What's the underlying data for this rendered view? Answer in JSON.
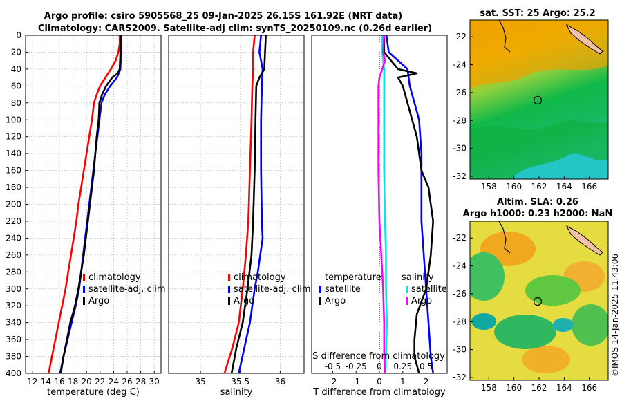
{
  "title": {
    "line1": "Argo profile: csiro 5905568_25 09-Jan-2025 26.15S 161.92E (NRT data)",
    "line2": "Climatology: CARS2009. Satellite-adj clim: synTS_20250109.nc (0.26d earlier)"
  },
  "credit": "©IMOS 14-Jan-2025 11:43:06",
  "colors": {
    "climatology": "#ff0000",
    "satellite": "#0000ff",
    "argo": "#000000",
    "sal_satellite": "#00e8e8",
    "sal_argo": "#ff00ff"
  },
  "chart_data": [
    {
      "type": "line",
      "name": "temperature-profile",
      "xlabel": "temperature (deg C)",
      "ylabel": "",
      "xlim": [
        11,
        31
      ],
      "ylim": [
        400,
        0
      ],
      "xticks": [
        12,
        14,
        16,
        18,
        20,
        22,
        24,
        26,
        28,
        30
      ],
      "yticks": [
        0,
        20,
        40,
        60,
        80,
        100,
        120,
        140,
        160,
        180,
        200,
        220,
        240,
        260,
        280,
        300,
        320,
        340,
        360,
        380,
        400
      ],
      "grid": true,
      "legend": {
        "position": "lower-right",
        "entries": [
          "climatology",
          "satellite-adj. clim",
          "Argo"
        ]
      },
      "series": [
        {
          "name": "climatology",
          "color": "#ff0000",
          "points": [
            [
              24.9,
              0
            ],
            [
              24.9,
              10
            ],
            [
              24.7,
              20
            ],
            [
              24.3,
              30
            ],
            [
              23.6,
              40
            ],
            [
              22.8,
              50
            ],
            [
              22.0,
              60
            ],
            [
              21.5,
              70
            ],
            [
              21.1,
              80
            ],
            [
              20.8,
              100
            ],
            [
              20.4,
              120
            ],
            [
              20.0,
              140
            ],
            [
              19.6,
              160
            ],
            [
              19.2,
              180
            ],
            [
              18.8,
              200
            ],
            [
              18.5,
              220
            ],
            [
              18.1,
              240
            ],
            [
              17.7,
              260
            ],
            [
              17.3,
              280
            ],
            [
              16.9,
              300
            ],
            [
              16.4,
              320
            ],
            [
              15.9,
              340
            ],
            [
              15.4,
              360
            ],
            [
              14.9,
              380
            ],
            [
              14.4,
              400
            ]
          ]
        },
        {
          "name": "satellite-adj. clim",
          "color": "#0000ff",
          "points": [
            [
              25.1,
              0
            ],
            [
              25.1,
              20
            ],
            [
              25.0,
              40
            ],
            [
              24.5,
              50
            ],
            [
              23.5,
              60
            ],
            [
              22.7,
              70
            ],
            [
              22.2,
              80
            ],
            [
              21.9,
              100
            ],
            [
              21.6,
              120
            ],
            [
              21.3,
              140
            ],
            [
              21.0,
              160
            ],
            [
              20.7,
              180
            ],
            [
              20.4,
              200
            ],
            [
              20.1,
              220
            ],
            [
              19.8,
              240
            ],
            [
              19.5,
              260
            ],
            [
              19.2,
              280
            ],
            [
              18.9,
              300
            ],
            [
              18.4,
              320
            ],
            [
              17.8,
              340
            ],
            [
              17.2,
              360
            ],
            [
              16.6,
              380
            ],
            [
              16.1,
              400
            ]
          ]
        },
        {
          "name": "Argo",
          "color": "#000000",
          "points": [
            [
              25.0,
              0
            ],
            [
              25.0,
              20
            ],
            [
              24.9,
              40
            ],
            [
              24.6,
              45
            ],
            [
              23.8,
              50
            ],
            [
              22.9,
              60
            ],
            [
              22.3,
              70
            ],
            [
              21.9,
              80
            ],
            [
              21.8,
              100
            ],
            [
              21.5,
              120
            ],
            [
              21.3,
              140
            ],
            [
              21.1,
              160
            ],
            [
              20.8,
              180
            ],
            [
              20.5,
              200
            ],
            [
              20.2,
              220
            ],
            [
              19.9,
              240
            ],
            [
              19.6,
              260
            ],
            [
              19.2,
              280
            ],
            [
              18.8,
              300
            ],
            [
              18.3,
              320
            ],
            [
              17.6,
              340
            ],
            [
              17.1,
              360
            ],
            [
              16.6,
              380
            ],
            [
              16.2,
              400
            ]
          ]
        }
      ]
    },
    {
      "type": "line",
      "name": "salinity-profile",
      "xlabel": "salinity",
      "xlim": [
        34.6,
        36.3
      ],
      "ylim": [
        400,
        0
      ],
      "xticks": [
        35,
        35.5,
        36
      ],
      "xtick_labels": [
        "35",
        "35.5",
        "36"
      ],
      "grid": true,
      "legend": {
        "position": "lower-right",
        "entries": [
          "climatology",
          "satellite-adj. clim",
          "Argo"
        ]
      },
      "series": [
        {
          "name": "climatology",
          "color": "#ff0000",
          "points": [
            [
              35.68,
              0
            ],
            [
              35.66,
              20
            ],
            [
              35.66,
              40
            ],
            [
              35.65,
              60
            ],
            [
              35.64,
              100
            ],
            [
              35.62,
              160
            ],
            [
              35.6,
              220
            ],
            [
              35.57,
              260
            ],
            [
              35.53,
              300
            ],
            [
              35.48,
              340
            ],
            [
              35.4,
              370
            ],
            [
              35.3,
              400
            ]
          ]
        },
        {
          "name": "satellite-adj. clim",
          "color": "#0000ff",
          "points": [
            [
              35.76,
              0
            ],
            [
              35.74,
              20
            ],
            [
              35.78,
              40
            ],
            [
              35.77,
              60
            ],
            [
              35.76,
              100
            ],
            [
              35.76,
              160
            ],
            [
              35.77,
              220
            ],
            [
              35.78,
              240
            ],
            [
              35.72,
              280
            ],
            [
              35.68,
              300
            ],
            [
              35.62,
              340
            ],
            [
              35.55,
              370
            ],
            [
              35.48,
              400
            ]
          ]
        },
        {
          "name": "Argo",
          "color": "#000000",
          "points": [
            [
              35.82,
              0
            ],
            [
              35.81,
              20
            ],
            [
              35.8,
              40
            ],
            [
              35.74,
              50
            ],
            [
              35.7,
              60
            ],
            [
              35.69,
              100
            ],
            [
              35.68,
              160
            ],
            [
              35.66,
              220
            ],
            [
              35.64,
              260
            ],
            [
              35.59,
              300
            ],
            [
              35.53,
              340
            ],
            [
              35.45,
              370
            ],
            [
              35.39,
              400
            ]
          ]
        }
      ]
    },
    {
      "type": "line",
      "name": "difference-profile",
      "xlabel": "T difference from climatology",
      "top_xlabel": "S difference from climatology",
      "xlim": [
        -2.9,
        2.9
      ],
      "ylim": [
        400,
        0
      ],
      "xticks": [
        -2,
        -1,
        0,
        1,
        2
      ],
      "xtick_labels": [
        "-2",
        "-1",
        "0",
        "1",
        "2"
      ],
      "top_xticks": [
        -0.5,
        -0.25,
        0,
        0.25,
        0.5
      ],
      "top_xtick_labels": [
        "-0.5",
        "-0.25",
        "0",
        "0.25",
        "0.5"
      ],
      "s_scale": 4,
      "legend": {
        "position": "lower",
        "groups": [
          {
            "title": "temperature",
            "entries": [
              "satellite",
              "Argo"
            ]
          },
          {
            "title": "salinity",
            "entries": [
              "satellite",
              "Argo"
            ]
          }
        ]
      },
      "series": [
        {
          "name": "T satellite",
          "color": "#0000ff",
          "points": [
            [
              0.3,
              0
            ],
            [
              0.4,
              20
            ],
            [
              1.2,
              40
            ],
            [
              1.3,
              60
            ],
            [
              1.5,
              80
            ],
            [
              1.7,
              100
            ],
            [
              1.8,
              140
            ],
            [
              1.8,
              180
            ],
            [
              1.8,
              220
            ],
            [
              1.9,
              260
            ],
            [
              2.0,
              300
            ],
            [
              2.1,
              340
            ],
            [
              2.2,
              380
            ],
            [
              2.3,
              400
            ]
          ]
        },
        {
          "name": "T Argo",
          "color": "#000000",
          "points": [
            [
              0.2,
              0
            ],
            [
              0.2,
              20
            ],
            [
              0.8,
              40
            ],
            [
              1.6,
              45
            ],
            [
              0.8,
              50
            ],
            [
              1.0,
              60
            ],
            [
              1.2,
              80
            ],
            [
              1.6,
              120
            ],
            [
              1.8,
              160
            ],
            [
              2.1,
              180
            ],
            [
              2.2,
              200
            ],
            [
              2.3,
              220
            ],
            [
              2.2,
              260
            ],
            [
              2.0,
              300
            ],
            [
              1.6,
              330
            ],
            [
              1.5,
              360
            ],
            [
              1.5,
              380
            ],
            [
              1.7,
              400
            ]
          ]
        },
        {
          "name": "S satellite",
          "color": "#00e8e8",
          "points": [
            [
              0.03,
              0
            ],
            [
              0.03,
              20
            ],
            [
              0.05,
              40
            ],
            [
              0.05,
              60
            ],
            [
              0.05,
              100
            ],
            [
              0.05,
              160
            ],
            [
              0.06,
              220
            ],
            [
              0.07,
              260
            ],
            [
              0.07,
              300
            ],
            [
              0.08,
              340
            ],
            [
              0.07,
              380
            ],
            [
              0.06,
              400
            ]
          ]
        },
        {
          "name": "S Argo",
          "color": "#ff00ff",
          "points": [
            [
              0.05,
              0
            ],
            [
              0.04,
              20
            ],
            [
              0.06,
              30
            ],
            [
              0.0,
              50
            ],
            [
              -0.01,
              60
            ],
            [
              -0.01,
              100
            ],
            [
              -0.01,
              160
            ],
            [
              0.0,
              220
            ],
            [
              0.02,
              260
            ],
            [
              0.04,
              300
            ],
            [
              0.05,
              340
            ],
            [
              0.05,
              380
            ],
            [
              0.06,
              400
            ]
          ]
        }
      ]
    },
    {
      "type": "heatmap",
      "name": "sst-map",
      "title": "sat. SST: 25 Argo: 25.2",
      "xlim": [
        156.5,
        167.5
      ],
      "ylim": [
        -32.2,
        -20.8
      ],
      "xticks": [
        158,
        160,
        162,
        164,
        166
      ],
      "yticks": [
        -22,
        -24,
        -26,
        -28,
        -30,
        -32
      ],
      "marker": {
        "lon": 161.92,
        "lat": -26.15
      }
    },
    {
      "type": "heatmap",
      "name": "sla-map",
      "title": "Altim. SLA: 0.26",
      "subtitle": "Argo h1000: 0.23 h2000: NaN",
      "xlim": [
        156.5,
        167.5
      ],
      "ylim": [
        -32.2,
        -20.8
      ],
      "xticks": [
        158,
        160,
        162,
        164,
        166
      ],
      "yticks": [
        -22,
        -24,
        -26,
        -28,
        -30,
        -32
      ],
      "marker": {
        "lon": 161.92,
        "lat": -26.15
      }
    }
  ]
}
